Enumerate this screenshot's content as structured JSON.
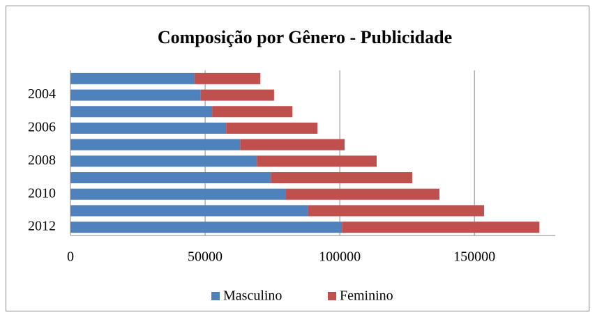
{
  "chart_data": {
    "type": "stacked_barh",
    "title": "Composição por Gênero - Publicidade",
    "categories": [
      null,
      "2004",
      null,
      "2006",
      null,
      "2008",
      null,
      "2010",
      null,
      "2012"
    ],
    "series": [
      {
        "name": "Masculino",
        "color": "#4f81bd",
        "values": [
          46000,
          48400,
          52600,
          57800,
          63000,
          69200,
          74400,
          79800,
          88300,
          100800
        ]
      },
      {
        "name": "Feminino",
        "color": "#c0504d",
        "values": [
          24500,
          27200,
          29800,
          33900,
          38800,
          44500,
          52500,
          57200,
          65300,
          73300
        ]
      }
    ],
    "xlim": [
      0,
      180000
    ],
    "xticks": [
      0,
      50000,
      100000,
      150000
    ],
    "grid": true,
    "legend": "bottom"
  }
}
